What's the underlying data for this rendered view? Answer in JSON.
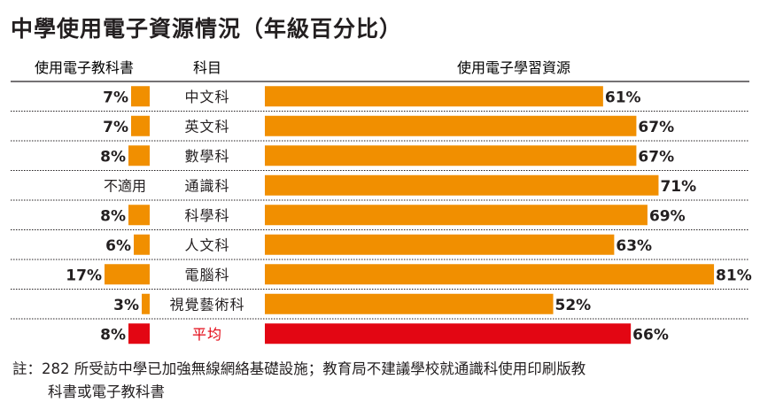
{
  "title": "中學使用電子資源情況（年級百分比）",
  "headers": {
    "left": "使用電子教科書",
    "middle": "科目",
    "right": "使用電子學習資源"
  },
  "colors": {
    "bar": "#f18f00",
    "average": "#e30613",
    "text": "#231f20",
    "average_label": "#e30613"
  },
  "note_lines": [
    "註：282 所受訪中學已加強無線網絡基礎設施；教育局不建議學校就通識科使用印刷版教",
    "科書或電子教科書"
  ],
  "chart_data": {
    "type": "bar",
    "title": "中學使用電子資源情況（年級百分比）",
    "categories": [
      "中文科",
      "英文科",
      "數學科",
      "通識科",
      "科學科",
      "人文科",
      "電腦科",
      "視覺藝術科",
      "平均"
    ],
    "series": [
      {
        "name": "使用電子教科書",
        "values": [
          7,
          7,
          8,
          null,
          8,
          6,
          17,
          3,
          8
        ],
        "labels": [
          "7%",
          "7%",
          "8%",
          "不適用",
          "8%",
          "6%",
          "17%",
          "3%",
          "8%"
        ]
      },
      {
        "name": "使用電子學習資源",
        "values": [
          61,
          67,
          67,
          71,
          69,
          63,
          81,
          52,
          66
        ],
        "labels": [
          "61%",
          "67%",
          "67%",
          "71%",
          "69%",
          "63%",
          "81%",
          "52%",
          "66%"
        ]
      }
    ],
    "highlight_category": "平均",
    "unit": "%"
  }
}
